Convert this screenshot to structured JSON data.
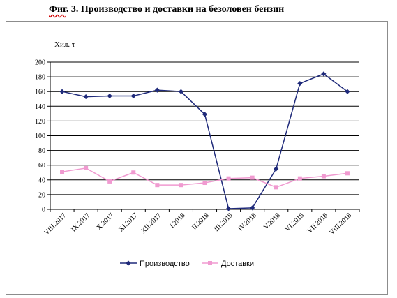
{
  "figure": {
    "prefix": "Фиг",
    "rest": ". 3. Производство и доставки на безоловен бензин"
  },
  "chart_data": {
    "type": "line",
    "title": "Фиг. 3. Производство и доставки на безоловен бензин",
    "ylabel": "Хил. т",
    "xlabel": "",
    "ylim": [
      0,
      200
    ],
    "yticks": [
      0,
      20,
      40,
      60,
      80,
      100,
      120,
      140,
      160,
      180,
      200
    ],
    "grid": "horizontal",
    "legend_position": "bottom",
    "categories": [
      "VIII.2017",
      "IX.2017",
      "X.2017",
      "XI.2017",
      "XII.2017",
      "I.2018",
      "II.2018",
      "III.2018",
      "IV.2018",
      "V.2018",
      "VI.2018",
      "VII.2018",
      "VIII.2018"
    ],
    "series": [
      {
        "name": "Производство",
        "color": "#1f2a7a",
        "marker": "diamond",
        "values": [
          160,
          153,
          154,
          154,
          162,
          160,
          129,
          1,
          2,
          55,
          171,
          184,
          160
        ]
      },
      {
        "name": "Доставки",
        "color": "#f09ad0",
        "marker": "square",
        "values": [
          51,
          56,
          38,
          50,
          33,
          33,
          36,
          42,
          43,
          30,
          42,
          45,
          49
        ]
      }
    ]
  }
}
